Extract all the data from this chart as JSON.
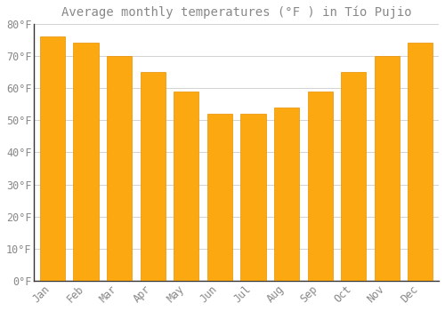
{
  "months": [
    "Jan",
    "Feb",
    "Mar",
    "Apr",
    "May",
    "Jun",
    "Jul",
    "Aug",
    "Sep",
    "Oct",
    "Nov",
    "Dec"
  ],
  "values": [
    76,
    74,
    70,
    65,
    59,
    52,
    52,
    54,
    59,
    65,
    70,
    74
  ],
  "bar_color_face": "#FCA811",
  "bar_color_edge": "#E89000",
  "title": "Average monthly temperatures (°F ) in Tío Pujio",
  "ylim": [
    0,
    80
  ],
  "ytick_step": 10,
  "background_color": "#FFFFFF",
  "plot_bg_color": "#FFFFFF",
  "grid_color": "#CCCCCC",
  "title_fontsize": 10,
  "tick_fontsize": 8.5,
  "font_color": "#888888",
  "spine_color": "#333333"
}
